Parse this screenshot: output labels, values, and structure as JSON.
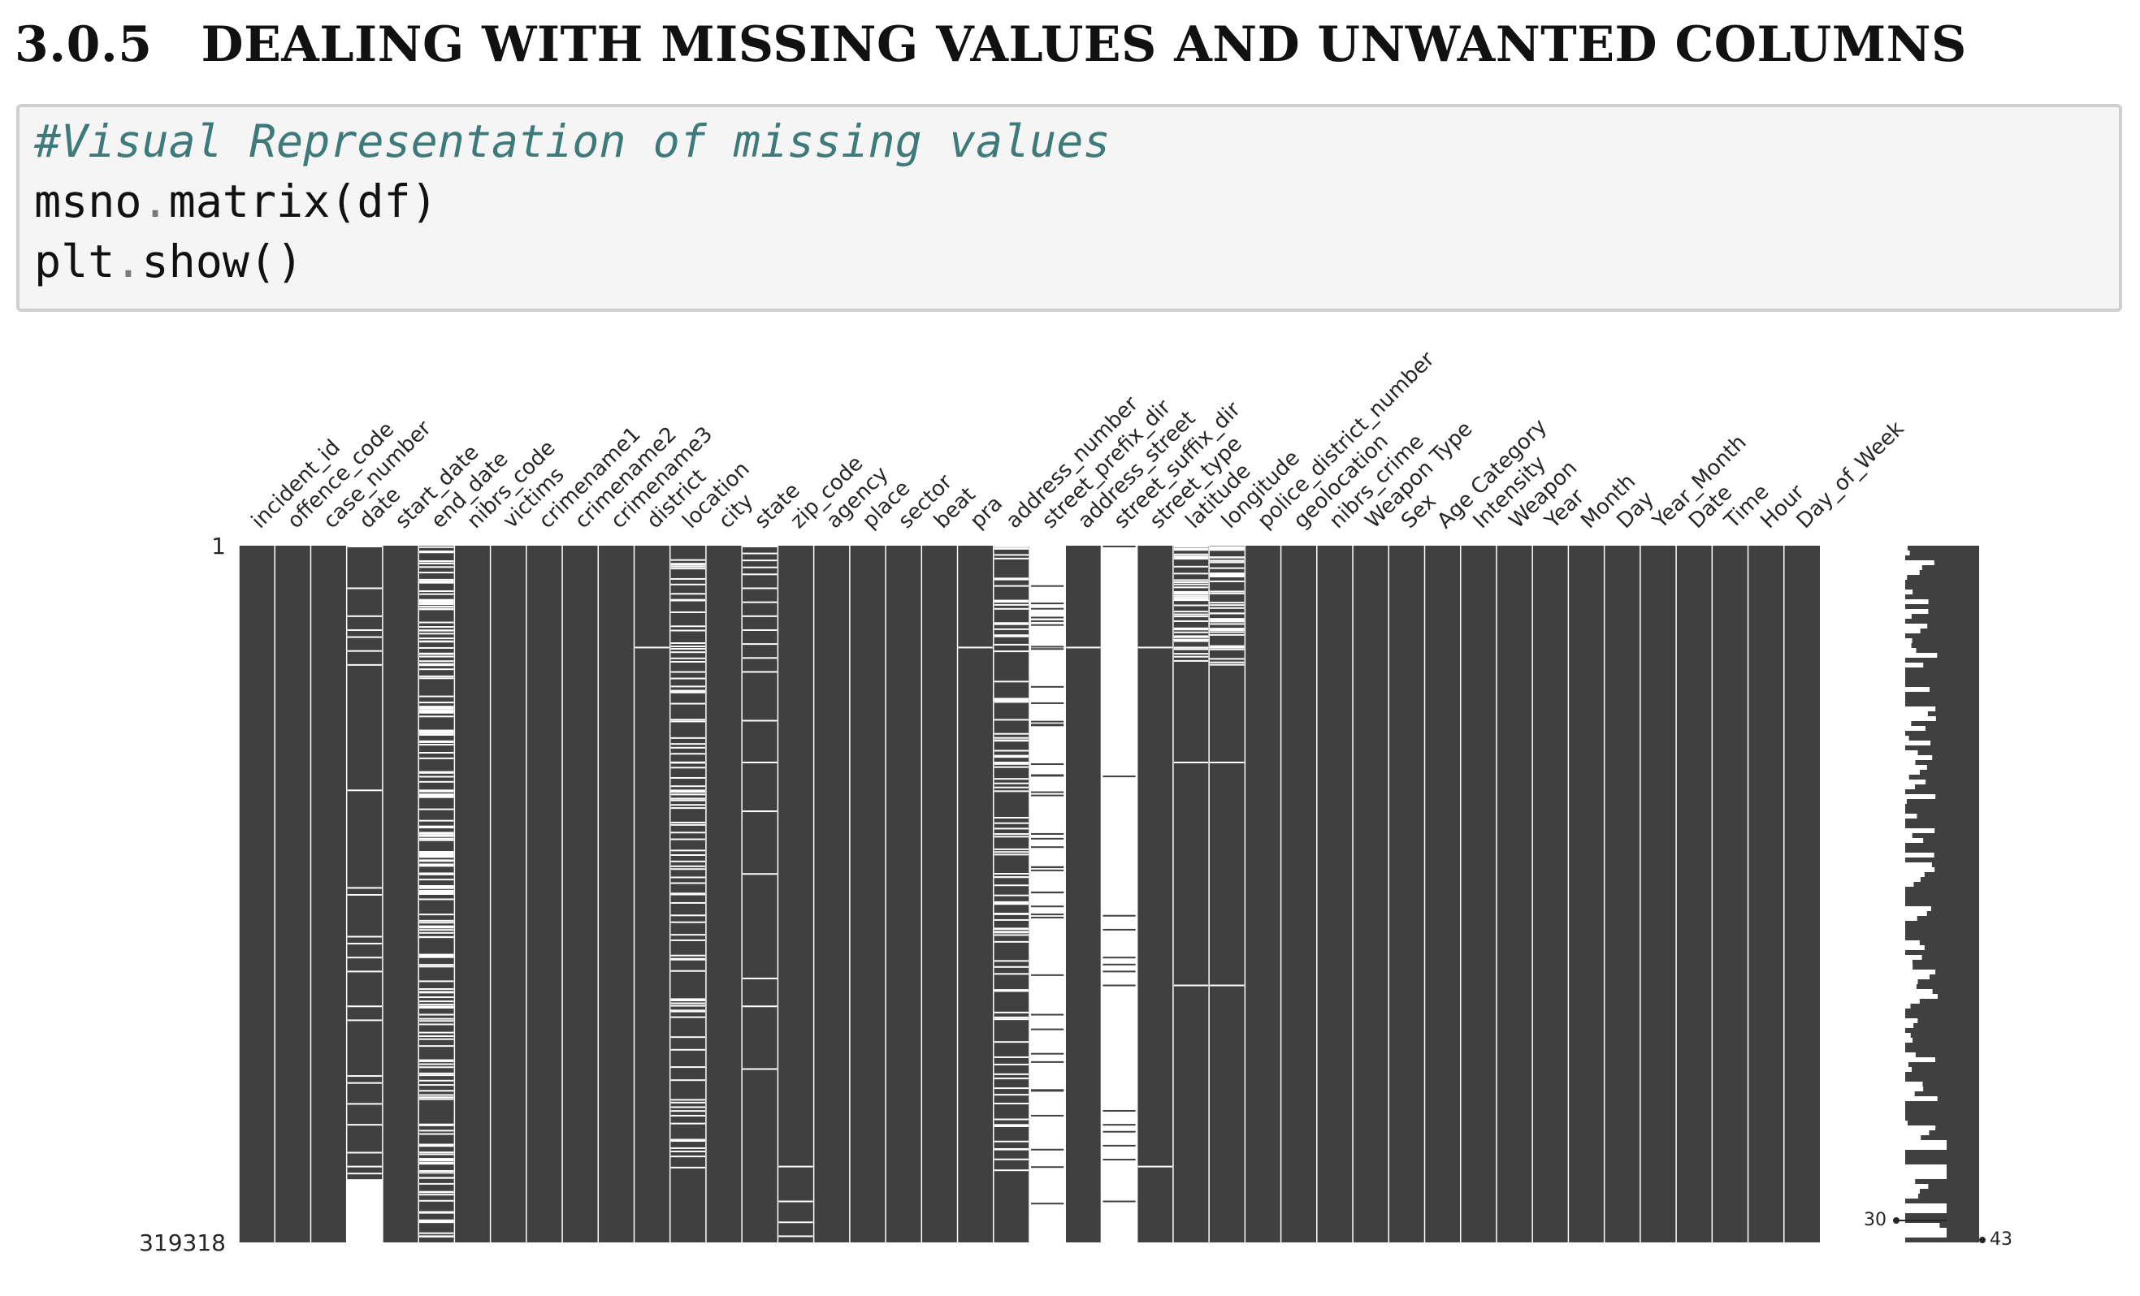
{
  "heading": {
    "number": "3.0.5",
    "title": "DEALING WITH MISSING VALUES AND UNWANTED COLUMNS"
  },
  "code_cell": {
    "lines": [
      {
        "kind": "comment",
        "text": "#Visual Representation of missing values"
      },
      {
        "kind": "code",
        "parts": [
          "msno",
          ".",
          "matrix(df)"
        ]
      },
      {
        "kind": "code",
        "parts": [
          "plt",
          ".",
          "show()"
        ]
      }
    ]
  },
  "chart_data": {
    "type": "heatmap",
    "description_kind": "missingno matrix",
    "bar_color": "#404040",
    "missing_color": "#ffffff",
    "row_range": [
      1,
      319318
    ],
    "y_tick_labels": [
      "1",
      "319318"
    ],
    "columns": [
      {
        "name": "incident_id",
        "missing": []
      },
      {
        "name": "offence_code",
        "missing": []
      },
      {
        "name": "case_number",
        "missing": []
      },
      {
        "name": "date",
        "missing": [
          0.0,
          0.06,
          0.1,
          0.12,
          0.13,
          0.15,
          0.17,
          0.35,
          0.49,
          0.5,
          0.56,
          0.57,
          0.59,
          0.61,
          0.66,
          0.68,
          0.76,
          0.77,
          0.8,
          0.83,
          0.87,
          0.89,
          0.9
        ],
        "missing_tail_from": 0.9
      },
      {
        "name": "start_date",
        "missing": []
      },
      {
        "name": "end_date",
        "missing": [],
        "dense": 0.6
      },
      {
        "name": "nibrs_code",
        "missing": []
      },
      {
        "name": "victims",
        "missing": []
      },
      {
        "name": "crimename1",
        "missing": []
      },
      {
        "name": "crimename2",
        "missing": []
      },
      {
        "name": "crimename3",
        "missing": []
      },
      {
        "name": "district",
        "missing": [
          0.145
        ]
      },
      {
        "name": "location",
        "missing": [],
        "dense": 0.3
      },
      {
        "name": "city",
        "missing": []
      },
      {
        "name": "state",
        "missing": [
          0.0,
          0.01,
          0.02,
          0.03,
          0.04,
          0.06,
          0.08,
          0.1,
          0.12,
          0.14,
          0.16,
          0.18,
          0.25,
          0.31,
          0.38,
          0.47,
          0.62,
          0.66,
          0.75
        ]
      },
      {
        "name": "zip_code",
        "missing": [
          0.89,
          0.94,
          0.97,
          0.99
        ]
      },
      {
        "name": "agency",
        "missing": []
      },
      {
        "name": "place",
        "missing": []
      },
      {
        "name": "sector",
        "missing": []
      },
      {
        "name": "beat",
        "missing": []
      },
      {
        "name": "pra",
        "missing": [
          0.145
        ]
      },
      {
        "name": "address_number",
        "missing": [],
        "dense": 0.3
      },
      {
        "name": "street_prefix_dir",
        "missing": [],
        "mostly_missing": true
      },
      {
        "name": "address_street",
        "missing": [
          0.145
        ]
      },
      {
        "name": "street_suffix_dir",
        "missing": [],
        "mostly_missing": true,
        "present": [
          0.0,
          0.33,
          0.53,
          0.55,
          0.59,
          0.6,
          0.61,
          0.63,
          0.81,
          0.83,
          0.84,
          0.86,
          0.88,
          0.94
        ]
      },
      {
        "name": "street_type",
        "missing": [
          0.145,
          0.89
        ]
      },
      {
        "name": "latitude",
        "missing": [
          0.145,
          0.31,
          0.63
        ],
        "dense_top": 0.17
      },
      {
        "name": "longitude",
        "missing": [
          0.145,
          0.31,
          0.63
        ],
        "dense_top": 0.17
      },
      {
        "name": "police_district_number",
        "missing": []
      },
      {
        "name": "geolocation",
        "missing": []
      },
      {
        "name": "nibrs_crime",
        "missing": []
      },
      {
        "name": "Weapon Type",
        "missing": []
      },
      {
        "name": "Sex",
        "missing": []
      },
      {
        "name": "Age Category",
        "missing": []
      },
      {
        "name": "Intensity",
        "missing": []
      },
      {
        "name": "Weapon",
        "missing": []
      },
      {
        "name": "Year",
        "missing": []
      },
      {
        "name": "Month",
        "missing": []
      },
      {
        "name": "Day",
        "missing": []
      },
      {
        "name": "Year_Month",
        "missing": []
      },
      {
        "name": "Date",
        "missing": []
      },
      {
        "name": "Time",
        "missing": []
      },
      {
        "name": "Hour",
        "missing": []
      },
      {
        "name": "Day_of_Week",
        "missing": []
      }
    ],
    "sparkline": {
      "min_label": "30",
      "max_label": "43",
      "min_value": 30,
      "max_value": 43
    }
  }
}
